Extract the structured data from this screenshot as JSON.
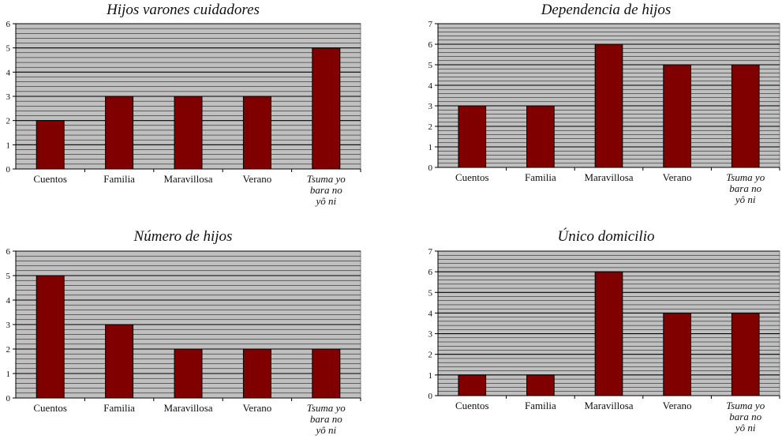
{
  "colors": {
    "bar": "#800000",
    "plot_bg": "#c0c0c0",
    "grid": "#000000"
  },
  "chart_data": [
    {
      "type": "bar",
      "title": "Hijos varones cuidadores",
      "categories": [
        "Cuentos",
        "Familia",
        "Maravillosa",
        "Verano",
        "Tsuma yo bara no yô ni"
      ],
      "values": [
        2,
        3,
        3,
        3,
        5
      ],
      "ylim": [
        0,
        6
      ],
      "yticks": [
        "0",
        "1",
        "2",
        "3",
        "4",
        "5",
        "6"
      ],
      "grid": true
    },
    {
      "type": "bar",
      "title": "Dependencia de hijos",
      "categories": [
        "Cuentos",
        "Familia",
        "Maravillosa",
        "Verano",
        "Tsuma yo bara no yô ni"
      ],
      "values": [
        3,
        3,
        6,
        5,
        5
      ],
      "ylim": [
        0,
        7
      ],
      "yticks": [
        "0",
        "1",
        "2",
        "3",
        "4",
        "5",
        "6",
        "7"
      ],
      "grid": true
    },
    {
      "type": "bar",
      "title": "Número de hijos",
      "categories": [
        "Cuentos",
        "Familia",
        "Maravillosa",
        "Verano",
        "Tsuma yo bara no yô ni"
      ],
      "values": [
        5,
        3,
        2,
        2,
        2
      ],
      "ylim": [
        0,
        6
      ],
      "yticks": [
        "0",
        "1",
        "2",
        "3",
        "4",
        "5",
        "6"
      ],
      "grid": true
    },
    {
      "type": "bar",
      "title": "Único domicilio",
      "categories": [
        "Cuentos",
        "Familia",
        "Maravillosa",
        "Verano",
        "Tsuma yo bara no yô ni"
      ],
      "values": [
        1,
        1,
        6,
        4,
        4
      ],
      "ylim": [
        0,
        7
      ],
      "yticks": [
        "0",
        "1",
        "2",
        "3",
        "4",
        "5",
        "6",
        "7"
      ],
      "grid": true
    }
  ]
}
